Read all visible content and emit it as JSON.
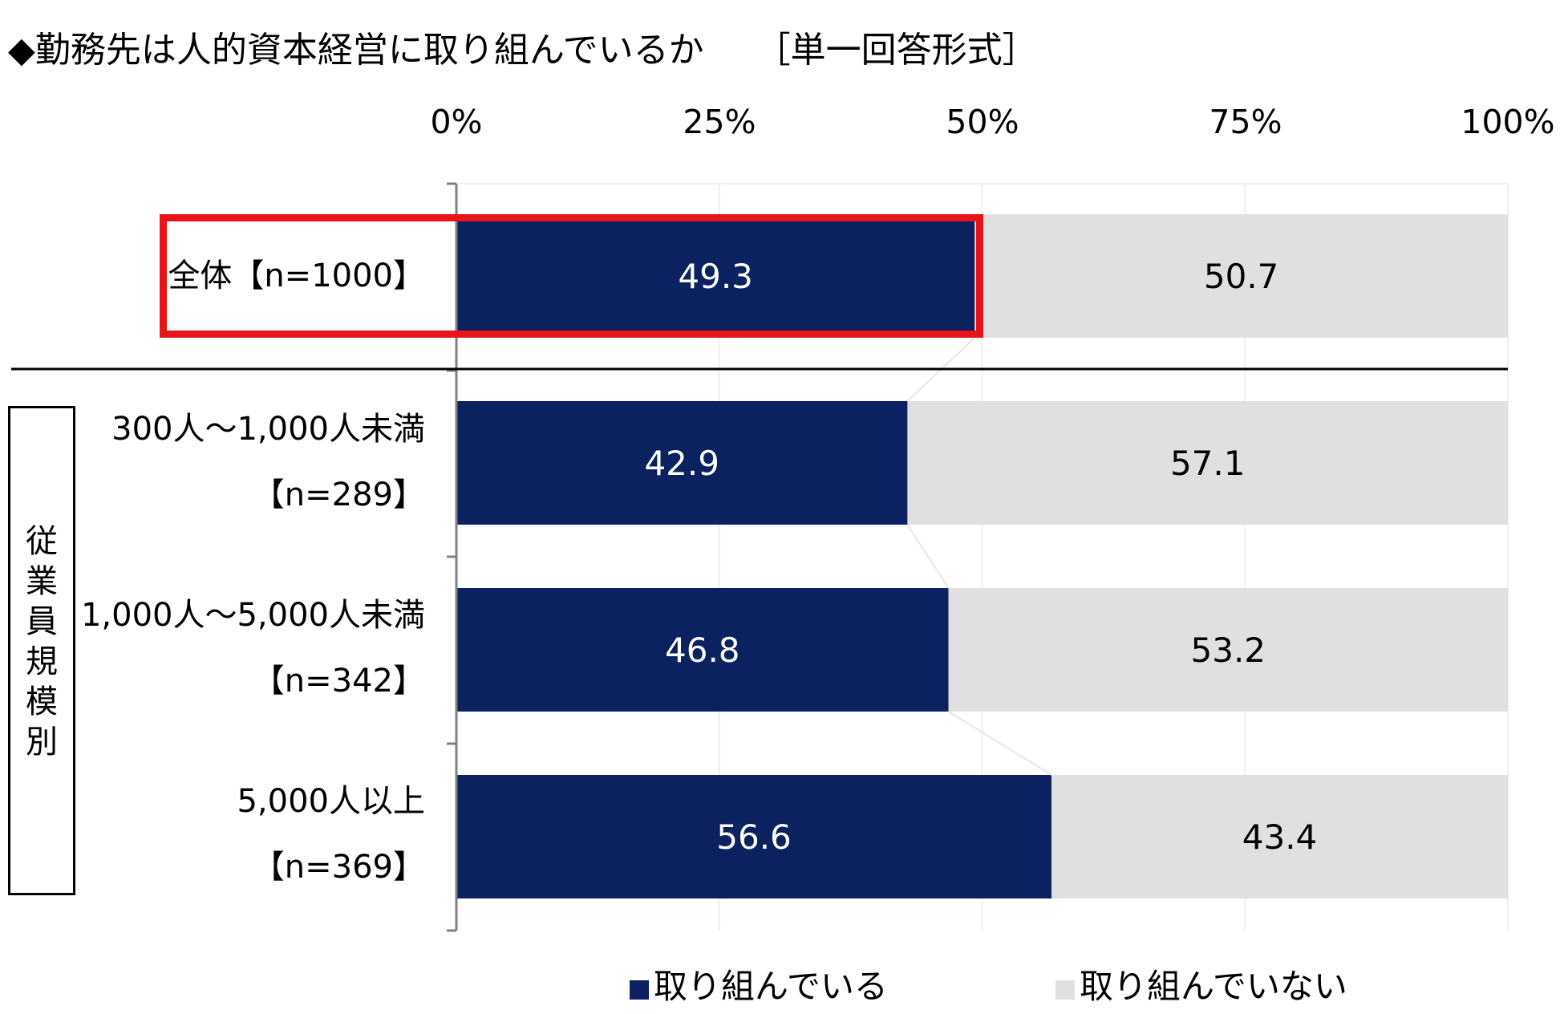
{
  "title": {
    "question": "◆勤務先は人的資本経営に取り組んでいるか",
    "format": "［単一回答形式］"
  },
  "group_label": "従業員規模別",
  "colors": {
    "engaged": "#0c2160",
    "not_engaged": "#e0e0e0",
    "highlight": "#e8141a"
  },
  "chart_data": {
    "type": "bar",
    "orientation": "horizontal",
    "stacked": "percent",
    "xlim": [
      0,
      100
    ],
    "xticks": [
      "0%",
      "25%",
      "50%",
      "75%",
      "100%"
    ],
    "xtick_values": [
      0,
      25,
      50,
      75,
      100
    ],
    "legend_position": "bottom",
    "categories": [
      {
        "label": "全体【n=1000】",
        "lines": [
          "全体【n=1000】"
        ],
        "highlighted": true
      },
      {
        "label": "300人～1,000人未満【n=289】",
        "lines": [
          "300人～1,000人未満",
          "【n=289】"
        ]
      },
      {
        "label": "1,000人～5,000人未満【n=342】",
        "lines": [
          "1,000人～5,000人未満",
          "【n=342】"
        ]
      },
      {
        "label": "5,000人以上【n=369】",
        "lines": [
          "5,000人以上",
          "【n=369】"
        ]
      }
    ],
    "series": [
      {
        "name": "取り組んでいる",
        "color": "#0c2160",
        "label_color": "#ffffff",
        "values": [
          49.3,
          42.9,
          46.8,
          56.6
        ],
        "labels": [
          "49.3",
          "42.9",
          "46.8",
          "56.6"
        ]
      },
      {
        "name": "取り組んでいない",
        "color": "#e0e0e0",
        "label_color": "#000000",
        "values": [
          50.7,
          57.1,
          53.2,
          43.4
        ],
        "labels": [
          "50.7",
          "57.1",
          "53.2",
          "43.4"
        ]
      }
    ]
  }
}
